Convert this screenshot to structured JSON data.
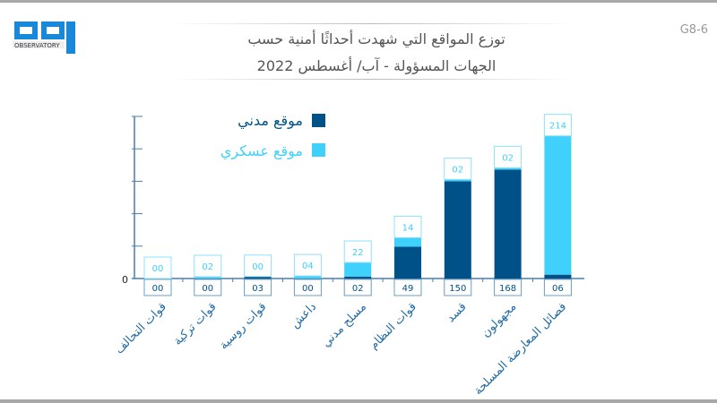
{
  "figure_code": "G8-6",
  "title_line1": "توزع المواقع التي شهدت أحداثًا أمنية حسب",
  "title_line2": "الجهات المسؤولة - آب/ أغسطس 2022",
  "logo": {
    "text": "مرصد",
    "subtext": "OBSERVATORY"
  },
  "colors": {
    "civil": "#005187",
    "military": "#3fd0fc",
    "axis": "#4a7fa8",
    "label": "#1f6aa5"
  },
  "chart_data": {
    "type": "bar",
    "stacked": true,
    "title": "توزع المواقع التي شهدت أحداثًا أمنية حسب الجهات المسؤولة - آب/ أغسطس 2022",
    "categories": [
      "قوات التحالف",
      "قوات تركية",
      "قوات روسية",
      "داعش",
      "مسلح مدني",
      "قوات النظام",
      "قسد",
      "مجهولون",
      "فصائل المعارضة المسلحة"
    ],
    "series": [
      {
        "name": "موقع مدني",
        "values": [
          0,
          0,
          3,
          0,
          2,
          49,
          150,
          168,
          6
        ],
        "labels": [
          "00",
          "00",
          "03",
          "00",
          "02",
          "49",
          "150",
          "168",
          "06"
        ]
      },
      {
        "name": "موقع عسكري",
        "values": [
          0,
          2,
          0,
          4,
          22,
          14,
          2,
          2,
          214
        ],
        "labels": [
          "00",
          "02",
          "00",
          "04",
          "22",
          "14",
          "02",
          "02",
          "214"
        ]
      }
    ],
    "y_tick_label": "0",
    "ylim": [
      0,
      250
    ],
    "yticks": [
      0,
      50,
      100,
      150,
      200,
      250
    ],
    "legend": "top-left"
  }
}
